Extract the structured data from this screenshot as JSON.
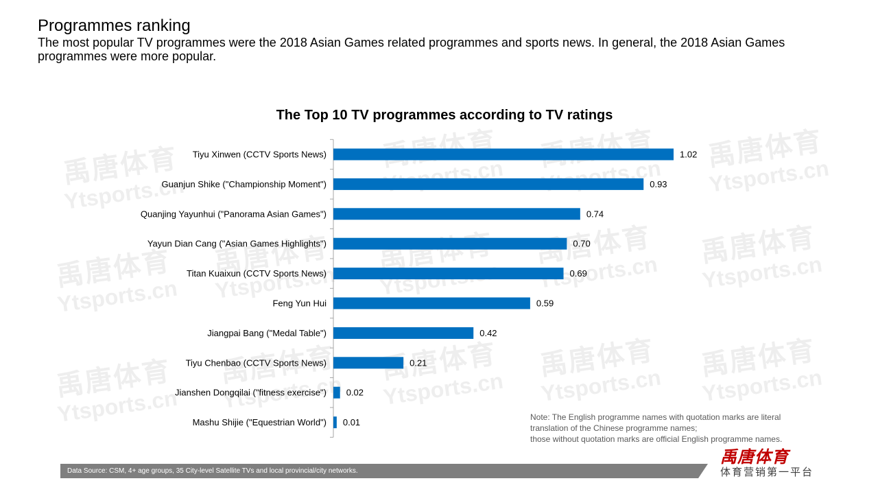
{
  "header": {
    "title": "Programmes ranking",
    "subtitle": "The most popular TV programmes were the 2018 Asian Games related programmes and sports news. In general, the 2018 Asian Games programmes were more popular."
  },
  "watermark": {
    "cn": "禹唐体育",
    "en": "Ytsports.cn"
  },
  "chart_data": {
    "type": "bar",
    "orientation": "horizontal",
    "title": "The Top 10 TV programmes according to TV ratings",
    "categories": [
      "Tiyu Xinwen (CCTV Sports News)",
      "Guanjun Shike (\"Championship Moment\")",
      "Quanjing Yayunhui (\"Panorama Asian Games\")",
      "Yayun Dian Cang (\"Asian Games Highlights\")",
      "Titan Kuaixun (CCTV Sports News)",
      "Feng Yun Hui",
      "Jiangpai Bang (\"Medal Table\")",
      "Tiyu Chenbao (CCTV Sports News)",
      "Jianshen Dongqilai (\"fitness exercise\")",
      "Mashu Shijie (\"Equestrian World\")"
    ],
    "values": [
      1.02,
      0.93,
      0.74,
      0.7,
      0.69,
      0.59,
      0.42,
      0.21,
      0.02,
      0.01
    ],
    "value_labels": [
      "1.02",
      "0.93",
      "0.74",
      "0.70",
      "0.69",
      "0.59",
      "0.42",
      "0.21",
      "0.02",
      "0.01"
    ],
    "xlim": [
      0,
      1.02
    ],
    "xlabel": "",
    "ylabel": "",
    "grid": false,
    "legend": "none",
    "bar_color": "#0070c0"
  },
  "note": {
    "line1": "Note: The English programme names with quotation marks are literal",
    "line2": "translation of the Chinese programme names;",
    "line3": "those without quotation marks are official English programme names."
  },
  "footer": {
    "source": "Data Source: CSM, 4+ age groups, 35 City-level Satellite TVs and local provincial/city networks."
  },
  "brand": {
    "logo": "禹唐体育",
    "tagline": "体育营销第一平台",
    "color": "#c00000"
  }
}
